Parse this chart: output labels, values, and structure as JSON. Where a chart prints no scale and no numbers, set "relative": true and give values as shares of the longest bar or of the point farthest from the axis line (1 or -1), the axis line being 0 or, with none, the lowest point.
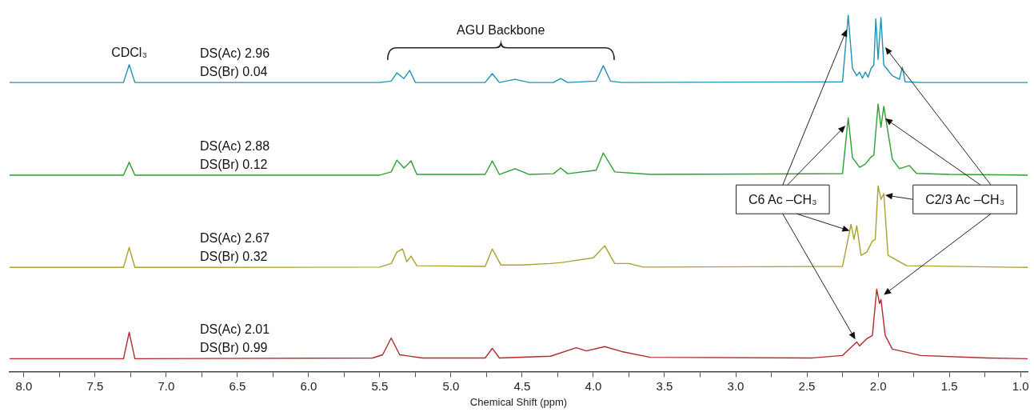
{
  "chart_data": {
    "type": "line",
    "relative": true,
    "xlabel": "Chemical Shift (ppm)",
    "xlim": [
      8.1,
      0.95
    ],
    "xticks": [
      {
        "value": 8,
        "label": "8.0"
      },
      {
        "value": 7.75,
        "label": null
      },
      {
        "value": 7.5,
        "label": "7.5"
      },
      {
        "value": 7.25,
        "label": null
      },
      {
        "value": 7,
        "label": "7.0"
      },
      {
        "value": 6.75,
        "label": null
      },
      {
        "value": 6.5,
        "label": "6.5"
      },
      {
        "value": 6.25,
        "label": null
      },
      {
        "value": 6,
        "label": "6.0"
      },
      {
        "value": 5.75,
        "label": null
      },
      {
        "value": 5.5,
        "label": "5.5"
      },
      {
        "value": 5.25,
        "label": null
      },
      {
        "value": 5,
        "label": "5.0"
      },
      {
        "value": 4.75,
        "label": null
      },
      {
        "value": 4.5,
        "label": "4.5"
      },
      {
        "value": 4.25,
        "label": null
      },
      {
        "value": 4,
        "label": "4.0"
      },
      {
        "value": 3.75,
        "label": null
      },
      {
        "value": 3.5,
        "label": "3.5"
      },
      {
        "value": 3.25,
        "label": null
      },
      {
        "value": 3,
        "label": "3.0"
      },
      {
        "value": 2.75,
        "label": null
      },
      {
        "value": 2.5,
        "label": "2.5"
      },
      {
        "value": 2.25,
        "label": null
      },
      {
        "value": 2,
        "label": "2.0"
      },
      {
        "value": 1.75,
        "label": null
      },
      {
        "value": 1.5,
        "label": "1.5"
      },
      {
        "value": 1.25,
        "label": null
      },
      {
        "value": 1,
        "label": "1.0"
      }
    ],
    "legend": false,
    "grid": false,
    "marker": "none",
    "line_style": "solid",
    "annotations": [
      {
        "text": "CDCl₃",
        "x": 7.26,
        "y": 0.861
      },
      "AGU Backbone",
      "C6 Ac –CH₃",
      "C2/3 Ac –CH₃"
    ],
    "series": [
      {
        "name": "DS(Ac) 2.96\nDS(Br) 0.04",
        "color": "#1b93b5",
        "x": [
          8.1,
          7.3,
          7.26,
          7.22,
          5.5,
          5.42,
          5.38,
          5.33,
          5.29,
          5.25,
          4.76,
          4.71,
          4.66,
          4.55,
          4.45,
          4.28,
          4.23,
          4.18,
          3.98,
          3.93,
          3.88,
          3.8,
          2.25,
          2.21,
          2.18,
          2.15,
          2.13,
          2.11,
          2.09,
          2.07,
          2.05,
          2.03,
          2.016,
          2.0,
          1.98,
          1.96,
          1.9,
          1.85,
          1.83,
          1.81,
          1.7,
          0.95
        ],
        "values": [
          0.811,
          0.811,
          0.861,
          0.811,
          0.811,
          0.815,
          0.838,
          0.822,
          0.845,
          0.811,
          0.811,
          0.836,
          0.811,
          0.82,
          0.811,
          0.811,
          0.822,
          0.811,
          0.815,
          0.858,
          0.815,
          0.811,
          0.813,
          1.0,
          0.85,
          0.83,
          0.84,
          0.823,
          0.84,
          0.826,
          0.85,
          0.86,
          0.989,
          0.876,
          0.993,
          0.86,
          0.83,
          0.82,
          0.854,
          0.813,
          0.811,
          0.811
        ]
      },
      {
        "name": "DS(Ac) 2.88\nDS(Br) 0.12",
        "color": "#2e9e35",
        "x": [
          8.1,
          7.3,
          7.26,
          7.22,
          5.5,
          5.42,
          5.38,
          5.33,
          5.28,
          5.24,
          4.76,
          4.71,
          4.66,
          4.55,
          4.45,
          4.28,
          4.23,
          4.18,
          3.98,
          3.93,
          3.85,
          3.6,
          2.25,
          2.21,
          2.18,
          2.13,
          2.09,
          2.05,
          2.03,
          2.0,
          1.98,
          1.96,
          1.9,
          1.85,
          1.78,
          1.73,
          1.5,
          0.95
        ],
        "values": [
          0.551,
          0.551,
          0.587,
          0.551,
          0.551,
          0.56,
          0.593,
          0.571,
          0.591,
          0.553,
          0.553,
          0.591,
          0.553,
          0.569,
          0.553,
          0.555,
          0.571,
          0.555,
          0.565,
          0.613,
          0.56,
          0.553,
          0.555,
          0.712,
          0.6,
          0.573,
          0.582,
          0.602,
          0.607,
          0.751,
          0.685,
          0.744,
          0.596,
          0.569,
          0.578,
          0.556,
          0.553,
          0.551
        ]
      },
      {
        "name": "DS(Ac) 2.67\nDS(Br) 0.32",
        "color": "#aba12c",
        "x": [
          8.1,
          7.3,
          7.26,
          7.22,
          5.5,
          5.42,
          5.38,
          5.34,
          5.31,
          5.28,
          5.24,
          4.76,
          4.71,
          4.65,
          4.5,
          4.3,
          4.22,
          4.0,
          3.92,
          3.85,
          3.75,
          3.65,
          2.25,
          2.19,
          2.17,
          2.15,
          2.12,
          2.08,
          2.04,
          2.02,
          2.0,
          1.98,
          1.96,
          1.93,
          1.88,
          1.8,
          0.95
        ],
        "values": [
          0.292,
          0.292,
          0.348,
          0.292,
          0.293,
          0.303,
          0.335,
          0.344,
          0.308,
          0.324,
          0.297,
          0.295,
          0.344,
          0.299,
          0.299,
          0.303,
          0.306,
          0.319,
          0.353,
          0.303,
          0.303,
          0.293,
          0.295,
          0.413,
          0.371,
          0.409,
          0.326,
          0.335,
          0.366,
          0.371,
          0.521,
          0.483,
          0.499,
          0.326,
          0.315,
          0.297,
          0.292
        ]
      },
      {
        "name": "DS(Ac) 2.01\nDS(Br) 0.99",
        "color": "#b3282d",
        "x": [
          8.1,
          7.3,
          7.26,
          7.22,
          5.55,
          5.48,
          5.42,
          5.36,
          5.2,
          4.76,
          4.71,
          4.66,
          4.3,
          4.12,
          4.05,
          3.92,
          3.8,
          3.6,
          2.47,
          2.25,
          2.15,
          2.13,
          2.08,
          2.04,
          2.01,
          1.99,
          1.98,
          1.95,
          1.9,
          1.7,
          1.23,
          0.95
        ],
        "values": [
          0.036,
          0.036,
          0.11,
          0.036,
          0.038,
          0.047,
          0.094,
          0.047,
          0.038,
          0.038,
          0.065,
          0.038,
          0.043,
          0.067,
          0.058,
          0.07,
          0.056,
          0.04,
          0.038,
          0.045,
          0.083,
          0.072,
          0.092,
          0.101,
          0.231,
          0.191,
          0.202,
          0.101,
          0.063,
          0.045,
          0.038,
          0.036
        ]
      }
    ]
  }
}
